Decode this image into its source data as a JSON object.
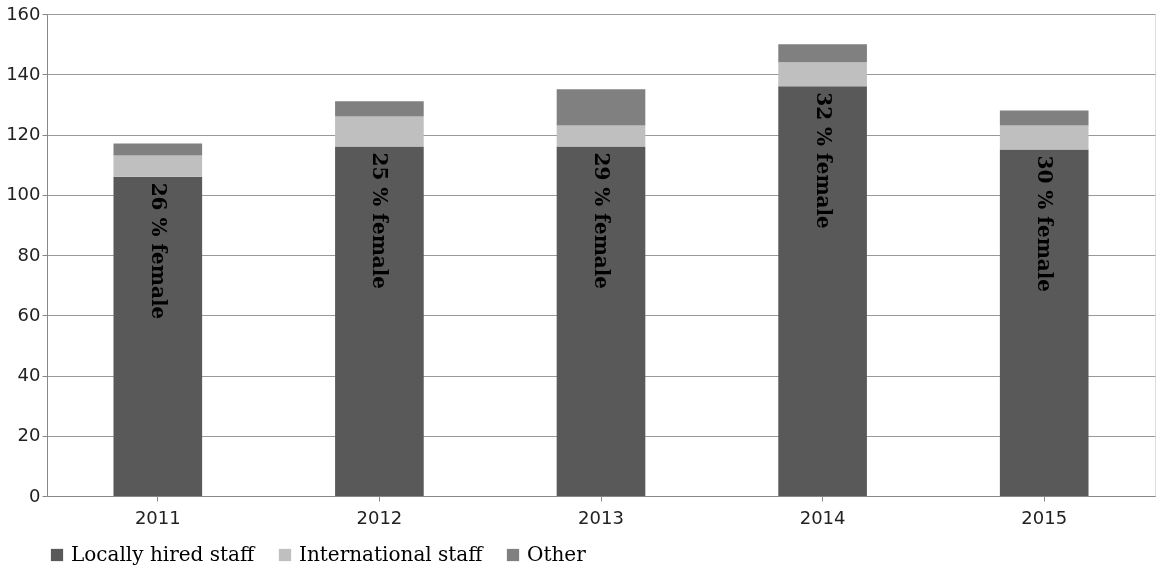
{
  "chart_data": {
    "type": "bar",
    "stacked": true,
    "categories": [
      "2011",
      "2012",
      "2013",
      "2014",
      "2015"
    ],
    "series": [
      {
        "name": "Locally hired staff",
        "color": "#595959",
        "values": [
          106,
          116,
          116,
          136,
          115
        ]
      },
      {
        "name": "International staff",
        "color": "#bfbfbf",
        "values": [
          7,
          10,
          7,
          8,
          8
        ]
      },
      {
        "name": "Other",
        "color": "#808080",
        "values": [
          4,
          5,
          12,
          6,
          5
        ]
      }
    ],
    "ylim": [
      0,
      160
    ],
    "yticks": [
      0,
      20,
      40,
      60,
      80,
      100,
      120,
      140,
      160
    ],
    "grid": "y",
    "legend": "bottom",
    "annotations": [
      "26 % female",
      "25 % female",
      "29 % female",
      "32 % female",
      "30 % female"
    ]
  }
}
